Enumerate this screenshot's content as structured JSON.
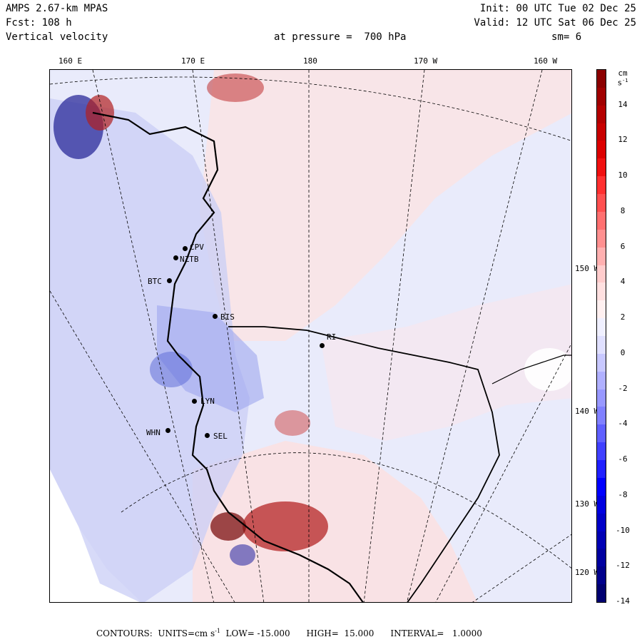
{
  "header": {
    "model": "AMPS 2.67-km MPAS",
    "forecast": "Fcst: 108 h",
    "field": "Vertical velocity",
    "init": "Init: 00 UTC Tue 02 Dec 25",
    "valid": "Valid: 12 UTC Sat 06 Dec 25",
    "pressure": "at pressure =  700 hPa",
    "smoothing": "sm= 6"
  },
  "top_axis_labels": [
    "160 E",
    "170 E",
    "180",
    "170 W",
    "160 W"
  ],
  "right_axis_labels": [
    "150 W",
    "140 W",
    "130 W",
    "120 W"
  ],
  "colorbar": {
    "units": "cm s-1",
    "ticks": [
      "14",
      "12",
      "10",
      "8",
      "6",
      "4",
      "2",
      "0",
      "-2",
      "-4",
      "-6",
      "-8",
      "-10",
      "-12",
      "-14"
    ],
    "colors_top_to_bottom": [
      "#8b0000",
      "#a00000",
      "#b40000",
      "#c80000",
      "#dc0000",
      "#f01010",
      "#ff3030",
      "#ff5050",
      "#ff7070",
      "#ff9090",
      "#ffb0b0",
      "#ffcccc",
      "#ffe0e0",
      "#fff0f0",
      "#f0f0ff",
      "#e0e0ff",
      "#c8c8ff",
      "#b0b0ff",
      "#9898ff",
      "#8080ff",
      "#6060ff",
      "#4040ff",
      "#2020ff",
      "#0000ff",
      "#0000e0",
      "#0000c8",
      "#0000b4",
      "#0000a0",
      "#00008b",
      "#000070"
    ]
  },
  "stations": [
    {
      "name": "CPV"
    },
    {
      "name": "NZTB"
    },
    {
      "name": "BTC"
    },
    {
      "name": "BIS"
    },
    {
      "name": "LYN"
    },
    {
      "name": "WHN"
    },
    {
      "name": "SEL"
    },
    {
      "name": "RI"
    }
  ],
  "footer": {
    "contours_label": "CONTOURS:  UNITS=cm s",
    "units_exp": "-1",
    "low": "LOW= -15.000",
    "high": "HIGH=  15.000",
    "interval": "INTERVAL=   1.0000"
  }
}
